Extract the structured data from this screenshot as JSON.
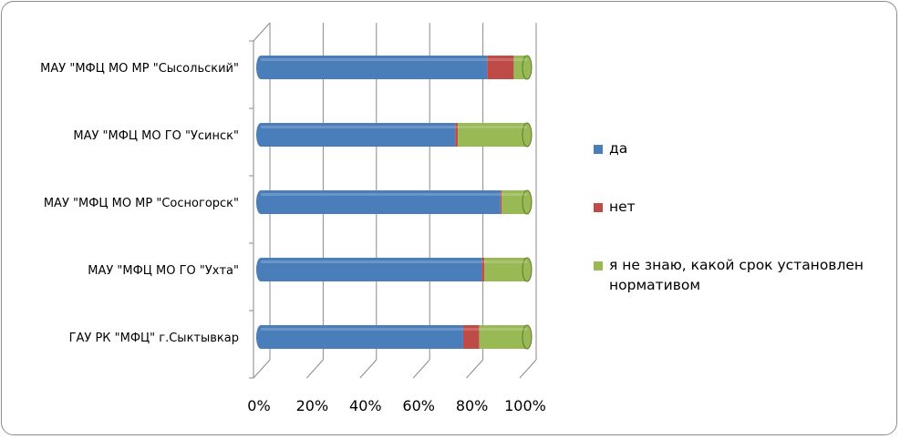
{
  "chart_data": {
    "type": "bar",
    "orientation": "horizontal",
    "stacked": "percent",
    "categories": [
      "ГАУ РК \"МФЦ\" г.Сыктывкар",
      "МАУ \"МФЦ МО ГО \"Ухта\"",
      "МАУ \"МФЦ МО МР \"Сосногорск\"",
      "МАУ \"МФЦ  МО ГО  \"Усинск\"",
      "МАУ \"МФЦ  МО МР  \"Сысольский\""
    ],
    "series": [
      {
        "name": "да",
        "color": "#4a7ebb",
        "values": [
          76,
          83,
          90,
          73,
          85
        ]
      },
      {
        "name": "нет",
        "color": "#be4b48",
        "values": [
          6,
          1,
          0.5,
          1,
          10
        ]
      },
      {
        "name": "я не знаю, какой срок установлен нормативом",
        "color": "#98b954",
        "values": [
          18,
          16,
          9.5,
          26,
          5
        ]
      }
    ],
    "x_ticks": [
      "0%",
      "20%",
      "40%",
      "60%",
      "80%",
      "100%"
    ],
    "xlim": [
      0,
      100
    ],
    "grid": true,
    "legend_position": "right"
  }
}
